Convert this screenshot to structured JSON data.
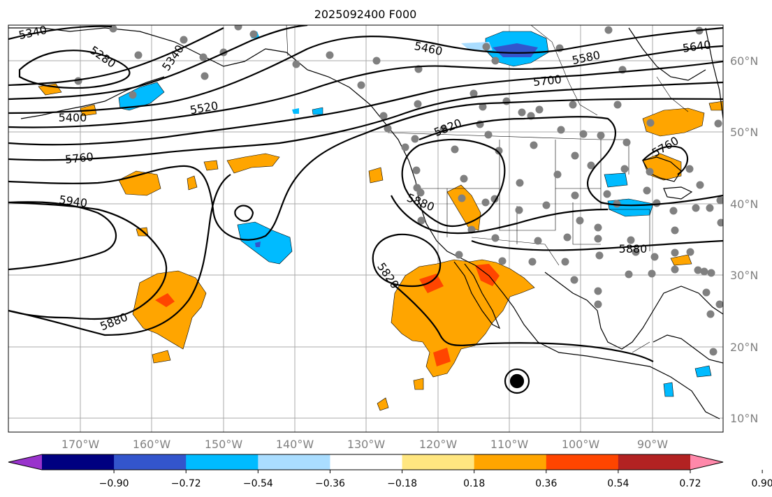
{
  "title": "2025092400 F000",
  "lon_labels": [
    "170°W",
    "160°W",
    "150°W",
    "140°W",
    "130°W",
    "120°W",
    "110°W",
    "100°W",
    "90°W"
  ],
  "lat_labels": [
    "60°N",
    "50°N",
    "40°N",
    "30°N",
    "20°N",
    "10°N"
  ],
  "contour_labels": [
    "5340",
    "5280",
    "5340",
    "5460",
    "5580",
    "5640",
    "5400",
    "5520",
    "5700",
    "5760",
    "5820",
    "5940",
    "5880",
    "5880",
    "5880",
    "5820",
    "5760"
  ],
  "colorbar": {
    "ticks": [
      "−0.90",
      "−0.72",
      "−0.54",
      "−0.36",
      "−0.18",
      "0.18",
      "0.36",
      "0.54",
      "0.72",
      "0.90"
    ],
    "colors": [
      "#9933cc",
      "#000080",
      "#3355cc",
      "#00bbff",
      "#aaddff",
      "#ffffff",
      "#ffe680",
      "#ffa500",
      "#ff4500",
      "#b22222",
      "#ff88aa"
    ]
  },
  "colors": {
    "positive_light": "#ffe680",
    "positive": "#ffa500",
    "positive_strong": "#ff4500",
    "negative_light": "#aaddff",
    "negative": "#00bbff",
    "negative_strong": "#3355cc",
    "station": "#808080"
  }
}
